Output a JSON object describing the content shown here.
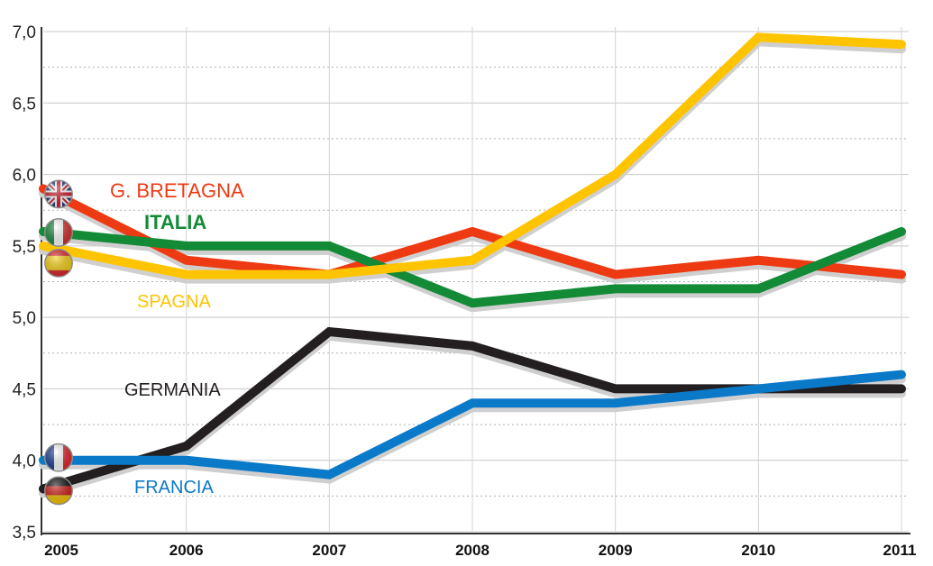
{
  "chart_data": {
    "type": "line",
    "title": "",
    "xlabel": "",
    "ylabel": "",
    "x": [
      "2005",
      "2006",
      "2007",
      "2008",
      "2009",
      "2010",
      "2011"
    ],
    "ylim": [
      3.5,
      7.0
    ],
    "yticks": [
      "3,5",
      "4,0",
      "4,5",
      "5,0",
      "5,5",
      "6,0",
      "6,5",
      "7,0"
    ],
    "grid": true,
    "series": [
      {
        "name": "G. BRETAGNA",
        "color": "#ee3a12",
        "flag": "uk-flag-icon",
        "values": [
          5.9,
          5.4,
          5.3,
          5.6,
          5.3,
          5.4,
          5.3
        ]
      },
      {
        "name": "ITALIA",
        "color": "#138a36",
        "flag": "italy-flag-icon",
        "values": [
          5.6,
          5.5,
          5.5,
          5.1,
          5.2,
          5.2,
          5.6
        ]
      },
      {
        "name": "SPAGNA",
        "color": "#ffc400",
        "flag": "spain-flag-icon",
        "values": [
          5.5,
          5.3,
          5.3,
          5.4,
          6.0,
          6.96,
          6.91
        ]
      },
      {
        "name": "GERMANIA",
        "color": "#231f20",
        "flag": "germany-flag-icon",
        "values": [
          3.8,
          4.1,
          4.9,
          4.8,
          4.5,
          4.5,
          4.5
        ]
      },
      {
        "name": "FRANCIA",
        "color": "#0a79c8",
        "flag": "france-flag-icon",
        "values": [
          4.0,
          4.0,
          3.9,
          4.4,
          4.4,
          4.5,
          4.6
        ]
      }
    ]
  }
}
